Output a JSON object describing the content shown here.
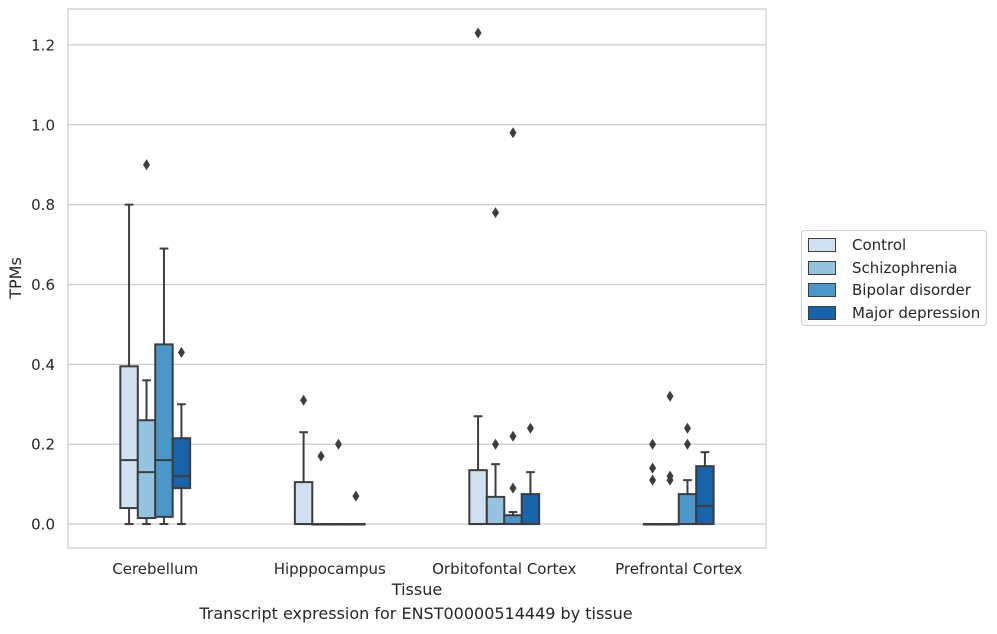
{
  "chart_data": {
    "type": "boxplot",
    "title": "",
    "caption": "Transcript expression for ENST00000514449 by tissue",
    "xlabel": "Tissue",
    "ylabel": "TPMs",
    "ylim": [
      -0.06,
      1.29
    ],
    "yticks": [
      {
        "value": 0.0,
        "label": "0.0"
      },
      {
        "value": 0.2,
        "label": "0.2"
      },
      {
        "value": 0.4,
        "label": "0.4"
      },
      {
        "value": 0.6,
        "label": "0.6"
      },
      {
        "value": 0.8,
        "label": "0.8"
      },
      {
        "value": 1.0,
        "label": "1.0"
      },
      {
        "value": 1.2,
        "label": "1.2"
      }
    ],
    "grid": "horizontal",
    "legend_position": "right",
    "categories": [
      "Cerebellum",
      "Hipppocampus",
      "Orbitofontal Cortex",
      "Prefrontal Cortex"
    ],
    "series": [
      {
        "name": "Control",
        "color": "#d0e1f2",
        "boxes": [
          {
            "min": 0.0,
            "q1": 0.04,
            "median": 0.16,
            "q3": 0.395,
            "max": 0.8,
            "outliers": []
          },
          {
            "min": 0.0,
            "q1": 0.0,
            "median": 0.0,
            "q3": 0.105,
            "max": 0.23,
            "outliers": [
              0.31
            ]
          },
          {
            "min": 0.0,
            "q1": 0.0,
            "median": 0.0,
            "q3": 0.135,
            "max": 0.27,
            "outliers": [
              1.23
            ]
          },
          {
            "min": 0.0,
            "q1": 0.0,
            "median": 0.0,
            "q3": 0.0,
            "max": 0.0,
            "outliers": [
              0.2,
              0.14,
              0.11
            ]
          }
        ]
      },
      {
        "name": "Schizophrenia",
        "color": "#94c4df",
        "boxes": [
          {
            "min": 0.0,
            "q1": 0.015,
            "median": 0.13,
            "q3": 0.26,
            "max": 0.36,
            "outliers": [
              0.9
            ]
          },
          {
            "min": 0.0,
            "q1": 0.0,
            "median": 0.0,
            "q3": 0.0,
            "max": 0.0,
            "outliers": [
              0.17
            ]
          },
          {
            "min": 0.0,
            "q1": 0.0,
            "median": 0.0,
            "q3": 0.068,
            "max": 0.15,
            "outliers": [
              0.78,
              0.2
            ]
          },
          {
            "min": 0.0,
            "q1": 0.0,
            "median": 0.0,
            "q3": 0.0,
            "max": 0.0,
            "outliers": [
              0.32,
              0.12,
              0.11
            ]
          }
        ]
      },
      {
        "name": "Bipolar disorder",
        "color": "#4a98c9",
        "boxes": [
          {
            "min": 0.0,
            "q1": 0.018,
            "median": 0.16,
            "q3": 0.45,
            "max": 0.69,
            "outliers": []
          },
          {
            "min": 0.0,
            "q1": 0.0,
            "median": 0.0,
            "q3": 0.0,
            "max": 0.0,
            "outliers": [
              0.2
            ]
          },
          {
            "min": 0.0,
            "q1": 0.0,
            "median": 0.0,
            "q3": 0.022,
            "max": 0.03,
            "outliers": [
              0.98,
              0.22,
              0.09
            ]
          },
          {
            "min": 0.0,
            "q1": 0.0,
            "median": 0.0,
            "q3": 0.075,
            "max": 0.11,
            "outliers": [
              0.24,
              0.2
            ]
          }
        ]
      },
      {
        "name": "Major depression",
        "color": "#1764ab",
        "boxes": [
          {
            "min": 0.0,
            "q1": 0.09,
            "median": 0.12,
            "q3": 0.215,
            "max": 0.3,
            "outliers": [
              0.43
            ]
          },
          {
            "min": 0.0,
            "q1": 0.0,
            "median": 0.0,
            "q3": 0.0,
            "max": 0.0,
            "outliers": [
              0.07
            ]
          },
          {
            "min": 0.0,
            "q1": 0.0,
            "median": 0.0,
            "q3": 0.075,
            "max": 0.13,
            "outliers": [
              0.24
            ]
          },
          {
            "min": 0.0,
            "q1": 0.0,
            "median": 0.045,
            "q3": 0.145,
            "max": 0.18,
            "outliers": []
          }
        ]
      }
    ]
  }
}
